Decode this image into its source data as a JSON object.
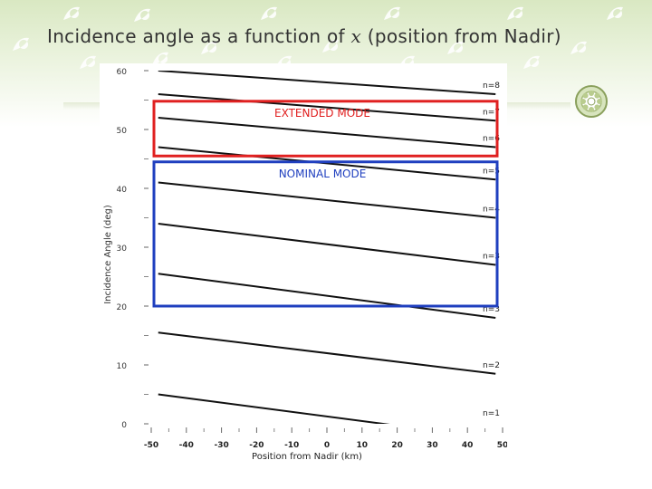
{
  "slide": {
    "title_pre": "Incidence angle as a function of ",
    "title_var": "x",
    "title_post": " (position from Nadir)",
    "badge_icon": "flower-badge-icon",
    "decoration_icon": "leaf-sprig-icon"
  },
  "chart_data": {
    "type": "line",
    "xlabel": "Position from Nadir (km)",
    "ylabel": "Incidence Angle (deg)",
    "xlim": [
      -50,
      50
    ],
    "ylim": [
      0,
      60
    ],
    "x_ticks": [
      -50,
      -40,
      -30,
      -20,
      -10,
      0,
      10,
      20,
      30,
      40,
      50
    ],
    "y_ticks": [
      0,
      10,
      20,
      30,
      40,
      50,
      60
    ],
    "grid": false,
    "line_color": "#111111",
    "x": [
      -48,
      48
    ],
    "series": [
      {
        "name": "n=8",
        "values": [
          60.0,
          56.0
        ]
      },
      {
        "name": "n=7",
        "values": [
          56.0,
          51.5
        ]
      },
      {
        "name": "n=6",
        "values": [
          52.0,
          47.0
        ]
      },
      {
        "name": "n=5",
        "values": [
          47.0,
          41.5
        ]
      },
      {
        "name": "n=4",
        "values": [
          41.0,
          35.0
        ]
      },
      {
        "name": "n=3",
        "values": [
          34.0,
          27.0
        ]
      },
      {
        "name": "n=3",
        "values": [
          25.5,
          18.0
        ]
      },
      {
        "name": "n=2",
        "values": [
          15.5,
          8.5
        ]
      },
      {
        "name": "n=1",
        "values": [
          5.0,
          -2.5
        ]
      }
    ],
    "regions": [
      {
        "label": "EXTENDED MODE",
        "color": "#e02020",
        "y_range": [
          45.5,
          54.8
        ]
      },
      {
        "label": "NOMINAL MODE",
        "color": "#1f3fbf",
        "y_range": [
          20.0,
          44.5
        ]
      }
    ]
  }
}
